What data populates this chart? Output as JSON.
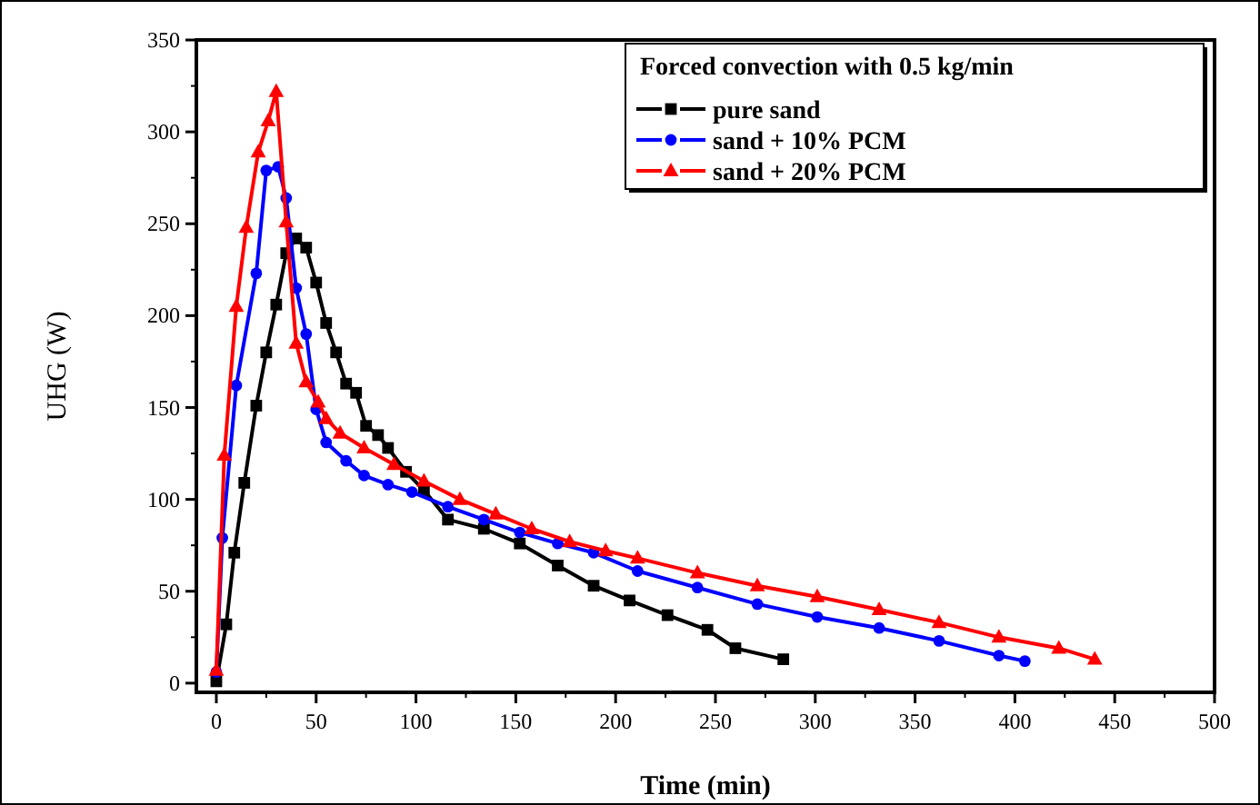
{
  "chart_data": {
    "type": "line",
    "xlabel": "Time (min)",
    "ylabel": "UHG (W)",
    "legend_title": "Forced convection with 0.5 kg/min",
    "legend": "top right",
    "grid": false,
    "line_style": "solid",
    "xlim": [
      -10,
      500
    ],
    "xticks": [
      0,
      50,
      100,
      150,
      200,
      250,
      300,
      350,
      400,
      450,
      500
    ],
    "ylim": [
      -5,
      350
    ],
    "yticks": [
      0,
      50,
      100,
      150,
      200,
      250,
      300,
      350
    ],
    "series": [
      {
        "name": "pure sand",
        "color": "#000000",
        "marker": "square",
        "x": [
          0,
          5,
          9,
          14,
          20,
          25,
          30,
          35,
          40,
          45,
          50,
          55,
          60,
          65,
          70,
          75,
          81,
          86,
          95,
          104,
          116,
          134,
          152,
          171,
          189,
          207,
          226,
          246,
          260,
          284
        ],
        "values": [
          1,
          32,
          71,
          109,
          151,
          180,
          206,
          234,
          242,
          237,
          218,
          196,
          180,
          163,
          158,
          140,
          135,
          128,
          115,
          105,
          89,
          84,
          76,
          64,
          53,
          45,
          37,
          29,
          19,
          13
        ]
      },
      {
        "name": "sand + 10% PCM",
        "color": "#0000ff",
        "marker": "circle",
        "x": [
          0,
          3,
          10,
          20,
          25,
          31,
          35,
          40,
          45,
          50,
          55,
          65,
          74,
          86,
          98,
          116,
          134,
          152,
          171,
          189,
          211,
          241,
          271,
          301,
          332,
          362,
          392,
          405
        ],
        "values": [
          6,
          79,
          162,
          223,
          279,
          281,
          264,
          215,
          190,
          149,
          131,
          121,
          113,
          108,
          104,
          96,
          89,
          82,
          76,
          71,
          61,
          52,
          43,
          36,
          30,
          23,
          15,
          12
        ]
      },
      {
        "name": "sand + 20% PCM",
        "color": "#ff0000",
        "marker": "triangle",
        "x": [
          0,
          4,
          10,
          15,
          21,
          26,
          30,
          35,
          40,
          45,
          51,
          55,
          62,
          74,
          89,
          104,
          122,
          140,
          158,
          177,
          195,
          211,
          241,
          271,
          301,
          332,
          362,
          392,
          422,
          440
        ],
        "values": [
          7,
          124,
          205,
          248,
          289,
          306,
          322,
          251,
          185,
          164,
          153,
          144,
          136,
          128,
          119,
          110,
          100,
          92,
          84,
          77,
          72,
          68,
          60,
          53,
          47,
          40,
          33,
          25,
          19,
          13
        ]
      }
    ]
  }
}
